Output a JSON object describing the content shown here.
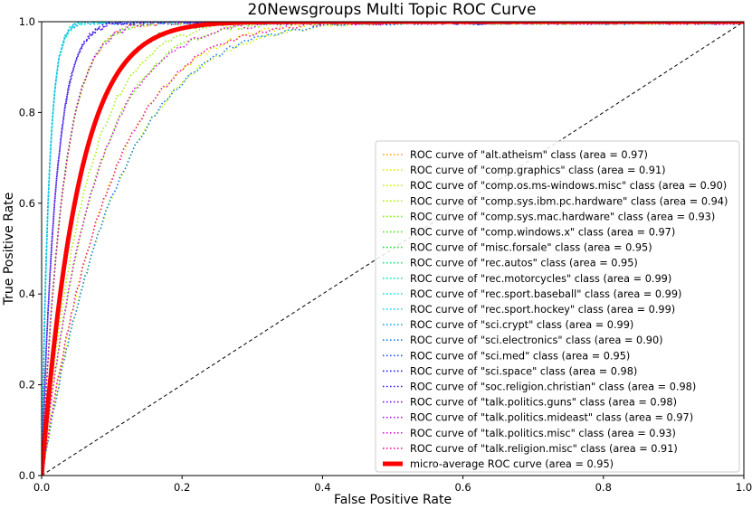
{
  "chart_data": {
    "type": "line",
    "title": "20Newsgroups Multi Topic ROC Curve",
    "xlabel": "False Positive Rate",
    "ylabel": "True Positive Rate",
    "xlim": [
      0.0,
      1.0
    ],
    "ylim": [
      0.0,
      1.0
    ],
    "x_ticks": [
      "0.0",
      "0.2",
      "0.4",
      "0.6",
      "0.8",
      "1.0"
    ],
    "y_ticks": [
      "0.0",
      "0.2",
      "0.4",
      "0.6",
      "0.8",
      "1.0"
    ],
    "grid": false,
    "legend_position": "lower-right",
    "diagonal": {
      "x": [
        0,
        1
      ],
      "y": [
        0,
        1
      ],
      "style": "dashed",
      "color": "#000000"
    },
    "series": [
      {
        "name": "ROC curve of \"alt.atheism\" class (area = 0.97)",
        "area": 0.97,
        "color": "#ffa000",
        "style": "dotted"
      },
      {
        "name": "ROC curve of \"comp.graphics\" class (area = 0.91)",
        "area": 0.91,
        "color": "#e8e800",
        "style": "dotted"
      },
      {
        "name": "ROC curve of \"comp.os.ms-windows.misc\" class (area = 0.90)",
        "area": 0.9,
        "color": "#c8f000",
        "style": "dotted"
      },
      {
        "name": "ROC curve of \"comp.sys.ibm.pc.hardware\" class (area = 0.94)",
        "area": 0.94,
        "color": "#a0f000",
        "style": "dotted"
      },
      {
        "name": "ROC curve of \"comp.sys.mac.hardware\" class (area = 0.93)",
        "area": 0.93,
        "color": "#78f000",
        "style": "dotted"
      },
      {
        "name": "ROC curve of \"comp.windows.x\" class (area = 0.97)",
        "area": 0.97,
        "color": "#40e800",
        "style": "dotted"
      },
      {
        "name": "ROC curve of \"misc.forsale\" class (area = 0.95)",
        "area": 0.95,
        "color": "#10e020",
        "style": "dotted"
      },
      {
        "name": "ROC curve of \"rec.autos\" class (area = 0.95)",
        "area": 0.95,
        "color": "#10e070",
        "style": "dotted"
      },
      {
        "name": "ROC curve of \"rec.motorcycles\" class (area = 0.99)",
        "area": 0.99,
        "color": "#10e0b0",
        "style": "dotted"
      },
      {
        "name": "ROC curve of \"rec.sport.baseball\" class (area = 0.99)",
        "area": 0.99,
        "color": "#10e8e0",
        "style": "dotted"
      },
      {
        "name": "ROC curve of \"rec.sport.hockey\" class (area = 0.99)",
        "area": 0.99,
        "color": "#10d0f0",
        "style": "dotted"
      },
      {
        "name": "ROC curve of \"sci.crypt\" class (area = 0.99)",
        "area": 0.99,
        "color": "#10a8f0",
        "style": "dotted"
      },
      {
        "name": "ROC curve of \"sci.electronics\" class (area = 0.90)",
        "area": 0.9,
        "color": "#1080f0",
        "style": "dotted"
      },
      {
        "name": "ROC curve of \"sci.med\" class (area = 0.95)",
        "area": 0.95,
        "color": "#1050f0",
        "style": "dotted"
      },
      {
        "name": "ROC curve of \"sci.space\" class (area = 0.98)",
        "area": 0.98,
        "color": "#1020e8",
        "style": "dotted"
      },
      {
        "name": "ROC curve of \"soc.religion.christian\" class (area = 0.98)",
        "area": 0.98,
        "color": "#3010e8",
        "style": "dotted"
      },
      {
        "name": "ROC curve of \"talk.politics.guns\" class (area = 0.98)",
        "area": 0.98,
        "color": "#7010e8",
        "style": "dotted"
      },
      {
        "name": "ROC curve of \"talk.politics.mideast\" class (area = 0.97)",
        "area": 0.97,
        "color": "#b010e8",
        "style": "dotted"
      },
      {
        "name": "ROC curve of \"talk.politics.misc\" class (area = 0.93)",
        "area": 0.93,
        "color": "#e010e0",
        "style": "dotted"
      },
      {
        "name": "ROC curve of \"talk.religion.misc\" class (area = 0.91)",
        "area": 0.91,
        "color": "#f010a0",
        "style": "dotted"
      },
      {
        "name": "micro-average ROC curve (area = 0.95)",
        "area": 0.95,
        "color": "#ff0000",
        "style": "solid"
      }
    ]
  }
}
